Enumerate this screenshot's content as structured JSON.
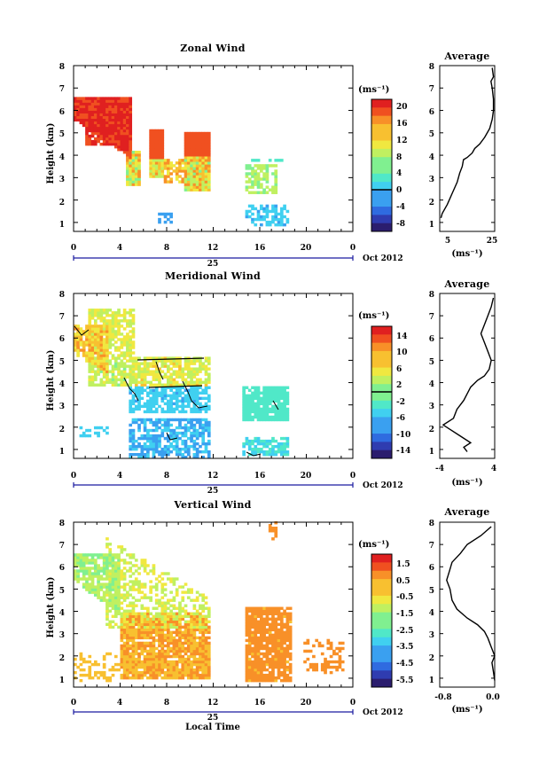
{
  "chart_data": [
    {
      "type": "heatmap",
      "title": "Zonal Wind",
      "ylabel": "Height (km)",
      "xticks": [
        "0",
        "4",
        "8",
        "12",
        "16",
        "20",
        "0"
      ],
      "xlim": [
        0,
        24
      ],
      "yticks": [
        "1",
        "2",
        "3",
        "4",
        "5",
        "6",
        "7",
        "8"
      ],
      "ylim": [
        0.6,
        8
      ],
      "date_day": "25",
      "date_label": "Oct 2012",
      "colorbar": {
        "unit": "(ms⁻¹)",
        "ticks": [
          "20",
          "16",
          "12",
          "8",
          "4",
          "0",
          "-4",
          "-8"
        ],
        "min": -10,
        "max": 22,
        "zero_line": 0
      },
      "average_panel": {
        "title": "Average",
        "xlabel": "(ms⁻¹)",
        "xticks": [
          "5",
          "25"
        ],
        "xlim": [
          4,
          26
        ],
        "profile": [
          [
            4.5,
            1.2
          ],
          [
            5,
            1.4
          ],
          [
            7,
            1.8
          ],
          [
            9,
            2.3
          ],
          [
            11,
            2.8
          ],
          [
            12,
            3.2
          ],
          [
            13,
            3.5
          ],
          [
            13.5,
            3.8
          ],
          [
            15,
            3.9
          ],
          [
            17,
            4.1
          ],
          [
            18,
            4.3
          ],
          [
            20,
            4.5
          ],
          [
            22,
            4.8
          ],
          [
            24,
            5.2
          ],
          [
            25,
            5.6
          ],
          [
            25.5,
            6.0
          ],
          [
            25.5,
            6.5
          ],
          [
            25,
            7.0
          ],
          [
            24.5,
            7.3
          ],
          [
            25.5,
            7.5
          ],
          [
            25,
            7.9
          ]
        ]
      }
    },
    {
      "type": "heatmap",
      "title": "Meridional Wind",
      "ylabel": "Height (km)",
      "xticks": [
        "0",
        "4",
        "8",
        "12",
        "16",
        "20",
        "0"
      ],
      "xlim": [
        0,
        24
      ],
      "yticks": [
        "1",
        "2",
        "3",
        "4",
        "5",
        "6",
        "7",
        "8"
      ],
      "ylim": [
        0.6,
        8
      ],
      "date_day": "25",
      "date_label": "Oct 2012",
      "colorbar": {
        "unit": "(ms⁻¹)",
        "ticks": [
          "14",
          "10",
          "6",
          "2",
          "-2",
          "-6",
          "-10",
          "-14"
        ],
        "min": -16,
        "max": 16,
        "zero_line": 0
      },
      "average_panel": {
        "title": "Average",
        "xlabel": "(ms⁻¹)",
        "xticks": [
          "-4",
          "4"
        ],
        "xlim": [
          -4,
          4
        ],
        "profile": [
          [
            0,
            0.9
          ],
          [
            -0.5,
            1.1
          ],
          [
            0.5,
            1.3
          ],
          [
            -1,
            1.6
          ],
          [
            -2.5,
            1.9
          ],
          [
            -3.5,
            2.1
          ],
          [
            -2,
            2.4
          ],
          [
            -1.5,
            2.8
          ],
          [
            -0.5,
            3.2
          ],
          [
            0,
            3.5
          ],
          [
            0.5,
            3.8
          ],
          [
            1.5,
            4.1
          ],
          [
            2.5,
            4.3
          ],
          [
            3.2,
            4.6
          ],
          [
            3.5,
            5.0
          ],
          [
            3.0,
            5.4
          ],
          [
            2.5,
            5.8
          ],
          [
            2.0,
            6.2
          ],
          [
            2.5,
            6.6
          ],
          [
            3.0,
            7.0
          ],
          [
            3.5,
            7.4
          ],
          [
            3.8,
            7.8
          ]
        ]
      }
    },
    {
      "type": "heatmap",
      "title": "Vertical Wind",
      "ylabel": "Height (km)",
      "xlabel": "Local Time",
      "xticks": [
        "0",
        "4",
        "8",
        "12",
        "16",
        "20",
        "0"
      ],
      "xlim": [
        0,
        24
      ],
      "yticks": [
        "1",
        "2",
        "3",
        "4",
        "5",
        "6",
        "7",
        "8"
      ],
      "ylim": [
        0.6,
        8
      ],
      "date_day": "25",
      "date_label": "Oct 2012",
      "colorbar": {
        "unit": "(ms⁻¹)",
        "ticks": [
          "1.5",
          "0.5",
          "-0.5",
          "-1.5",
          "-2.5",
          "-3.5",
          "-4.5",
          "-5.5"
        ],
        "min": -6,
        "max": 2
      },
      "average_panel": {
        "title": "Average",
        "xlabel": "(ms⁻¹)",
        "xticks": [
          "-0.8",
          "0.0"
        ],
        "xlim": [
          -0.8,
          0.0
        ],
        "profile": [
          [
            0,
            0.9
          ],
          [
            -0.02,
            1.3
          ],
          [
            -0.04,
            1.7
          ],
          [
            0,
            2.0
          ],
          [
            -0.05,
            2.4
          ],
          [
            -0.1,
            2.8
          ],
          [
            -0.15,
            3.1
          ],
          [
            -0.25,
            3.4
          ],
          [
            -0.4,
            3.7
          ],
          [
            -0.55,
            4.1
          ],
          [
            -0.62,
            4.5
          ],
          [
            -0.65,
            5.0
          ],
          [
            -0.7,
            5.4
          ],
          [
            -0.66,
            5.8
          ],
          [
            -0.62,
            6.2
          ],
          [
            -0.5,
            6.6
          ],
          [
            -0.4,
            7.0
          ],
          [
            -0.2,
            7.4
          ],
          [
            -0.05,
            7.8
          ]
        ]
      }
    }
  ]
}
